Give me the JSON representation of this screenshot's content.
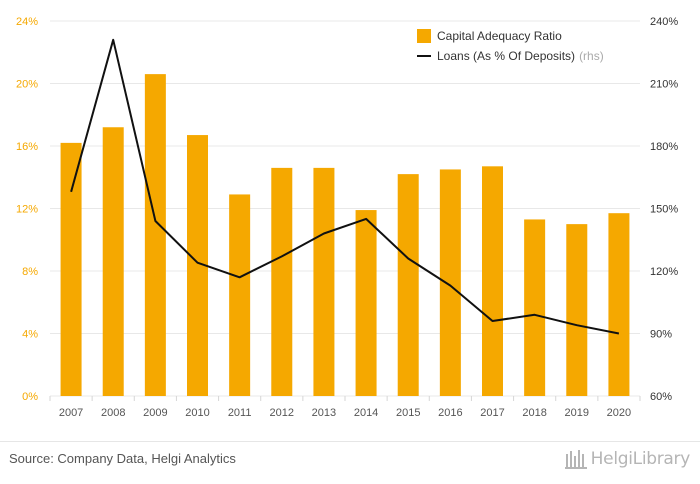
{
  "chart_data": {
    "type": "bar",
    "categories": [
      "2007",
      "2008",
      "2009",
      "2010",
      "2011",
      "2012",
      "2013",
      "2014",
      "2015",
      "2016",
      "2017",
      "2018",
      "2019",
      "2020"
    ],
    "series": [
      {
        "name": "Capital Adequacy Ratio",
        "type": "bar",
        "axis": "left",
        "color": "#f5a800",
        "values": [
          16.2,
          17.2,
          20.6,
          16.7,
          12.9,
          14.6,
          14.6,
          11.9,
          14.2,
          14.5,
          14.7,
          11.3,
          11.0,
          11.7
        ]
      },
      {
        "name": "Loans (As % Of Deposits)",
        "name_suffix": "(rhs)",
        "type": "line",
        "axis": "right",
        "color": "#111111",
        "values": [
          158,
          231,
          144,
          124,
          117,
          127,
          138,
          145,
          126,
          113,
          96,
          99,
          94,
          90
        ]
      }
    ],
    "y_left": {
      "min": 0,
      "max": 24,
      "ticks": [
        0,
        4,
        8,
        12,
        16,
        20,
        24
      ],
      "tick_labels": [
        "0%",
        "4%",
        "8%",
        "12%",
        "16%",
        "20%",
        "24%"
      ]
    },
    "y_right": {
      "min": 60,
      "max": 240,
      "ticks": [
        60,
        90,
        120,
        150,
        180,
        210,
        240
      ],
      "tick_labels": [
        "60%",
        "90%",
        "120%",
        "150%",
        "180%",
        "210%",
        "240%"
      ]
    },
    "grid": true,
    "legend_position": "top-right"
  },
  "footer": {
    "source": "Source: Company Data, Helgi Analytics",
    "brand": "HelgiLibrary"
  },
  "colors": {
    "bar": "#f5a800",
    "line": "#111111",
    "grid": "#e8e8e8"
  }
}
